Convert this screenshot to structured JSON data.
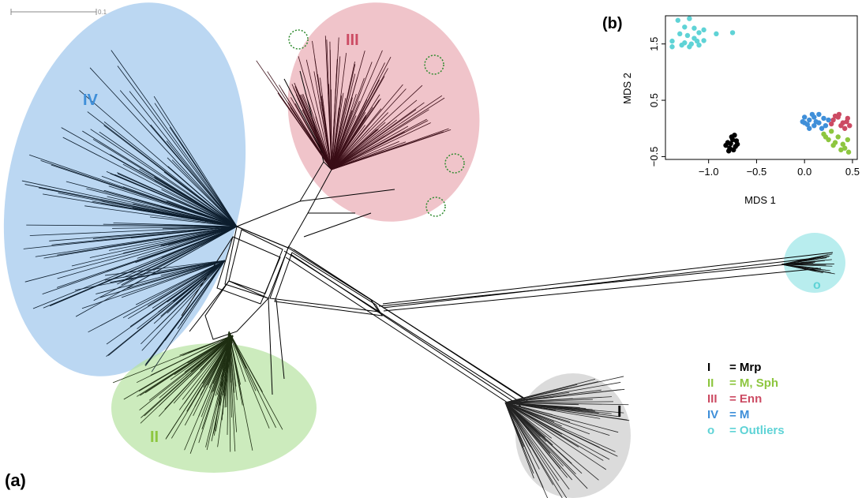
{
  "panel_a": {
    "label": "(a)",
    "scale_bar_label": "0.1",
    "clusters": [
      {
        "id": "I",
        "label": "I",
        "color": "#ffffff",
        "fill": "#b7b7b7"
      },
      {
        "id": "II",
        "label": "II",
        "color": "#8dc63f",
        "fill": "#b6e2a1"
      },
      {
        "id": "III",
        "label": "III",
        "color": "#cc4b63",
        "fill": "#e8a4ad"
      },
      {
        "id": "IV",
        "label": "IV",
        "color": "#3f8fd9",
        "fill": "#9ec6ec"
      },
      {
        "id": "o",
        "label": "o",
        "color": "#5fd3d6",
        "fill": "#a6e8ea"
      }
    ],
    "legend": [
      {
        "symbol": "I",
        "text": "= Mrp",
        "color": "#000000"
      },
      {
        "symbol": "II",
        "text": "= M, Sph",
        "color": "#8dc63f"
      },
      {
        "symbol": "III",
        "text": "= Enn",
        "color": "#cc4b63"
      },
      {
        "symbol": "IV",
        "text": "= M",
        "color": "#3f8fd9"
      },
      {
        "symbol": "o",
        "text": "= Outliers",
        "color": "#5fd3d6"
      }
    ]
  },
  "panel_b": {
    "label": "(b)",
    "chart_data": {
      "type": "scatter",
      "xlabel": "MDS 1",
      "ylabel": "MDS 2",
      "xlim": [
        -1.45,
        0.55
      ],
      "ylim": [
        -0.55,
        2.0
      ],
      "xticks": [
        "−1.0",
        "−0.5",
        "0.0",
        "0.5"
      ],
      "yticks": [
        "−0.5",
        "0.5",
        "1.5"
      ],
      "series": [
        {
          "color": "#5fd3d6",
          "points": [
            [
              -1.32,
              1.92
            ],
            [
              -1.2,
              1.95
            ],
            [
              -1.25,
              1.8
            ],
            [
              -1.15,
              1.78
            ],
            [
              -1.05,
              1.75
            ],
            [
              -1.1,
              1.7
            ],
            [
              -1.3,
              1.68
            ],
            [
              -1.22,
              1.65
            ],
            [
              -0.92,
              1.68
            ],
            [
              -0.75,
              1.7
            ],
            [
              -1.38,
              1.55
            ],
            [
              -1.25,
              1.52
            ],
            [
              -1.18,
              1.5
            ],
            [
              -1.12,
              1.55
            ],
            [
              -1.28,
              1.48
            ],
            [
              -1.2,
              1.45
            ],
            [
              -1.1,
              1.48
            ],
            [
              -1.05,
              1.56
            ],
            [
              -1.38,
              1.45
            ],
            [
              -1.15,
              1.6
            ]
          ]
        },
        {
          "color": "#000000",
          "points": [
            [
              -0.8,
              -0.25
            ],
            [
              -0.75,
              -0.2
            ],
            [
              -0.72,
              -0.32
            ],
            [
              -0.78,
              -0.35
            ],
            [
              -0.7,
              -0.28
            ],
            [
              -0.76,
              -0.15
            ],
            [
              -0.74,
              -0.38
            ],
            [
              -0.82,
              -0.3
            ],
            [
              -0.71,
              -0.22
            ],
            [
              -0.73,
              -0.12
            ],
            [
              -0.79,
              -0.4
            ],
            [
              -0.77,
              -0.27
            ]
          ]
        },
        {
          "color": "#3f8fd9",
          "points": [
            [
              0.0,
              0.1
            ],
            [
              0.05,
              0.15
            ],
            [
              0.1,
              0.2
            ],
            [
              0.15,
              0.1
            ],
            [
              0.2,
              0.18
            ],
            [
              0.1,
              0.05
            ],
            [
              0.05,
              0.0
            ],
            [
              0.15,
              0.25
            ],
            [
              0.22,
              0.05
            ],
            [
              0.0,
              0.2
            ],
            [
              0.12,
              0.12
            ],
            [
              0.18,
              0.0
            ],
            [
              0.08,
              0.25
            ],
            [
              0.25,
              0.15
            ],
            [
              0.03,
              0.07
            ],
            [
              -0.02,
              0.12
            ]
          ]
        },
        {
          "color": "#cc4b63",
          "points": [
            [
              0.3,
              0.15
            ],
            [
              0.35,
              0.2
            ],
            [
              0.4,
              0.1
            ],
            [
              0.45,
              0.18
            ],
            [
              0.38,
              0.05
            ],
            [
              0.32,
              0.22
            ],
            [
              0.42,
              0.0
            ],
            [
              0.28,
              0.08
            ],
            [
              0.44,
              0.12
            ],
            [
              0.36,
              0.25
            ],
            [
              0.47,
              0.05
            ]
          ]
        },
        {
          "color": "#8dc63f",
          "points": [
            [
              0.2,
              -0.1
            ],
            [
              0.25,
              -0.2
            ],
            [
              0.3,
              -0.3
            ],
            [
              0.35,
              -0.15
            ],
            [
              0.4,
              -0.28
            ],
            [
              0.45,
              -0.2
            ],
            [
              0.38,
              -0.38
            ],
            [
              0.28,
              -0.05
            ],
            [
              0.42,
              -0.35
            ],
            [
              0.32,
              -0.25
            ],
            [
              0.46,
              -0.42
            ],
            [
              0.22,
              -0.15
            ]
          ]
        }
      ]
    }
  }
}
